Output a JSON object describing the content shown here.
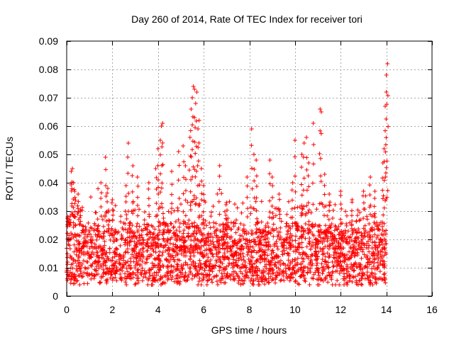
{
  "chart_data": {
    "type": "scatter",
    "title": "Day 260 of 2014, Rate Of TEC Index for receiver tori",
    "xlabel": "GPS time / hours",
    "ylabel": "ROTI / TECUs",
    "xlim": [
      0,
      16
    ],
    "ylim": [
      0,
      0.09
    ],
    "grid": true,
    "marker": "plus",
    "color": "#ff0000",
    "x_tick_labels": [
      "0",
      "2",
      "4",
      "6",
      "8",
      "10",
      "12",
      "14",
      "16"
    ],
    "y_tick_labels": [
      "0",
      "0.01",
      "0.02",
      "0.03",
      "0.04",
      "0.05",
      "0.06",
      "0.07",
      "0.08",
      "0.09"
    ],
    "x_ticks": [
      0,
      2,
      4,
      6,
      8,
      10,
      12,
      14,
      16
    ],
    "y_ticks": [
      0,
      0.01,
      0.02,
      0.03,
      0.04,
      0.05,
      0.06,
      0.07,
      0.08,
      0.09
    ],
    "data_x_range": [
      0.0,
      14.0
    ],
    "baseline_band": [
      0.005,
      0.025
    ],
    "series": [
      {
        "name": "ROTI",
        "points": [
          [
            0.05,
            0.028
          ],
          [
            0.1,
            0.027
          ],
          [
            0.15,
            0.025
          ],
          [
            0.2,
            0.044
          ],
          [
            0.25,
            0.045
          ],
          [
            0.3,
            0.04
          ],
          [
            0.35,
            0.037
          ],
          [
            0.5,
            0.036
          ],
          [
            0.6,
            0.03
          ],
          [
            1.5,
            0.04
          ],
          [
            1.7,
            0.049
          ],
          [
            1.8,
            0.038
          ],
          [
            2.0,
            0.034
          ],
          [
            2.6,
            0.039
          ],
          [
            2.7,
            0.054
          ],
          [
            2.9,
            0.046
          ],
          [
            3.1,
            0.042
          ],
          [
            3.6,
            0.04
          ],
          [
            3.9,
            0.045
          ],
          [
            4.0,
            0.052
          ],
          [
            4.1,
            0.055
          ],
          [
            4.15,
            0.06
          ],
          [
            4.2,
            0.061
          ],
          [
            4.6,
            0.044
          ],
          [
            4.9,
            0.051
          ],
          [
            5.1,
            0.053
          ],
          [
            5.2,
            0.046
          ],
          [
            5.4,
            0.056
          ],
          [
            5.45,
            0.066
          ],
          [
            5.5,
            0.07
          ],
          [
            5.55,
            0.074
          ],
          [
            5.6,
            0.073
          ],
          [
            5.65,
            0.068
          ],
          [
            5.7,
            0.072
          ],
          [
            5.75,
            0.059
          ],
          [
            5.8,
            0.062
          ],
          [
            5.9,
            0.045
          ],
          [
            6.0,
            0.039
          ],
          [
            6.7,
            0.046
          ],
          [
            7.0,
            0.033
          ],
          [
            7.9,
            0.042
          ],
          [
            8.1,
            0.059
          ],
          [
            8.2,
            0.05
          ],
          [
            8.3,
            0.048
          ],
          [
            8.9,
            0.048
          ],
          [
            9.0,
            0.042
          ],
          [
            9.3,
            0.036
          ],
          [
            9.9,
            0.04
          ],
          [
            10.0,
            0.055
          ],
          [
            10.3,
            0.05
          ],
          [
            10.4,
            0.054
          ],
          [
            10.5,
            0.056
          ],
          [
            10.6,
            0.047
          ],
          [
            10.8,
            0.061
          ],
          [
            11.1,
            0.066
          ],
          [
            11.15,
            0.065
          ],
          [
            11.3,
            0.043
          ],
          [
            11.5,
            0.036
          ],
          [
            12.0,
            0.037
          ],
          [
            12.5,
            0.034
          ],
          [
            13.0,
            0.037
          ],
          [
            13.3,
            0.042
          ],
          [
            13.5,
            0.037
          ],
          [
            13.85,
            0.047
          ],
          [
            13.9,
            0.052
          ],
          [
            13.95,
            0.067
          ],
          [
            14.0,
            0.072
          ],
          [
            14.0,
            0.078
          ],
          [
            14.05,
            0.082
          ]
        ]
      }
    ]
  }
}
